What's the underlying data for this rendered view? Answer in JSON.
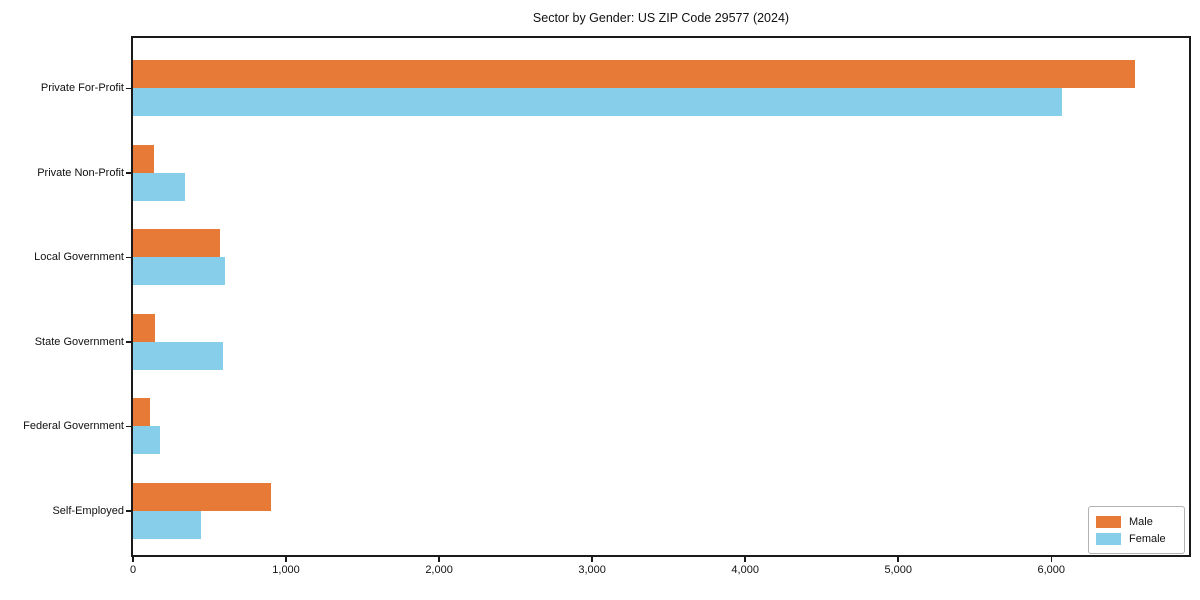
{
  "title": "Sector by Gender: US ZIP Code 29577 (2024)",
  "chart_data": {
    "type": "bar",
    "orientation": "horizontal",
    "title": "Sector by Gender: US ZIP Code 29577 (2024)",
    "categories": [
      "Private For-Profit",
      "Private Non-Profit",
      "Local Government",
      "State Government",
      "Federal Government",
      "Self-Employed"
    ],
    "series": [
      {
        "name": "Male",
        "color": "#E87A38",
        "values": [
          6550,
          140,
          570,
          145,
          110,
          900
        ]
      },
      {
        "name": "Female",
        "color": "#87CEEA",
        "values": [
          6070,
          340,
          600,
          590,
          175,
          445
        ]
      }
    ],
    "xlabel": "",
    "ylabel": "",
    "xlim": [
      0,
      6900
    ],
    "xticks": [
      0,
      1000,
      2000,
      3000,
      4000,
      5000,
      6000
    ],
    "xtick_labels": [
      "0",
      "1,000",
      "2,000",
      "3,000",
      "4,000",
      "5,000",
      "6,000"
    ],
    "grid": false,
    "legend_position": "lower right",
    "frame_color": "#1a1a1a"
  }
}
